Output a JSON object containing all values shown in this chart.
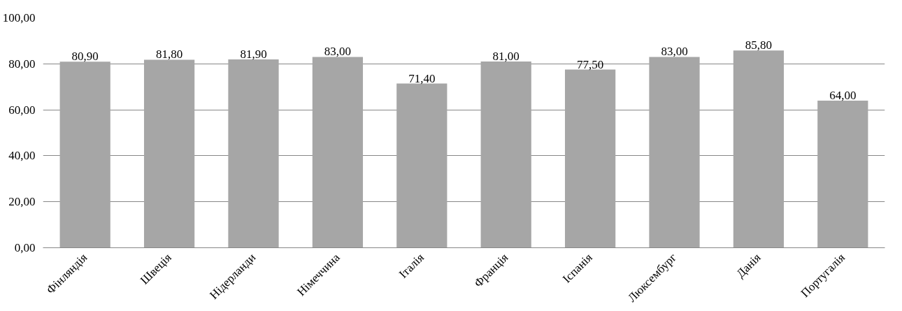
{
  "chart_data": {
    "type": "bar",
    "categories": [
      "Фінляндія",
      "Швеція",
      "Нідерланди",
      "Німеччина",
      "Італія",
      "Франція",
      "Іспанія",
      "Люксембург",
      "Данія",
      "Португалія"
    ],
    "values": [
      80.9,
      81.8,
      81.9,
      83.0,
      71.4,
      81.0,
      77.5,
      83.0,
      85.8,
      64.0
    ],
    "value_labels": [
      "80,90",
      "81,80",
      "81,90",
      "83,00",
      "71,40",
      "81,00",
      "77,50",
      "83,00",
      "85,80",
      "64,00"
    ],
    "color": "#a6a6a6",
    "ylim": [
      0,
      100
    ],
    "yticks": [
      {
        "value": 0,
        "label": "0,00"
      },
      {
        "value": 20,
        "label": "20,00"
      },
      {
        "value": 40,
        "label": "40,00"
      },
      {
        "value": 60,
        "label": "60,00"
      },
      {
        "value": 80,
        "label": "80,00"
      },
      {
        "value": 100,
        "label": "100,00"
      }
    ],
    "grid": "y"
  }
}
